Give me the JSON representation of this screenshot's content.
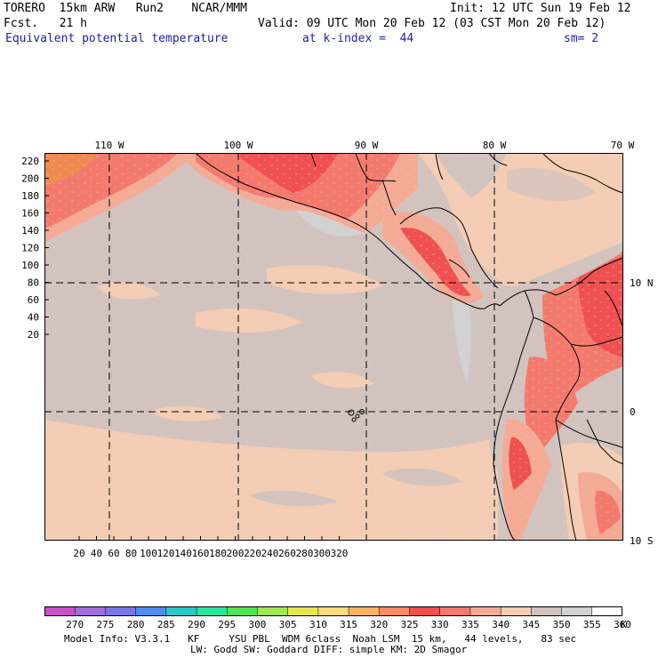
{
  "header": {
    "model_name": "TORERO  15km ARW   Run2    NCAR/MMM",
    "init": "Init: 12 UTC Sun 19 Feb 12",
    "fcst": "Fcst.   21 h",
    "valid": "Valid: 09 UTC Mon 20 Feb 12 (03 CST Mon 20 Feb 12)",
    "field": "Equivalent potential temperature",
    "level": "at k-index =  44",
    "smoothing": "sm= 2"
  },
  "map": {
    "top_longitudes": [
      "110 W",
      "100 W",
      "90 W",
      "80 W",
      "70 W"
    ],
    "right_latitudes": [
      "10 N",
      "0",
      "10 S"
    ],
    "y_ticks": [
      "220",
      "200",
      "180",
      "160",
      "140",
      "120",
      "100",
      "80",
      "60",
      "40",
      "20"
    ],
    "x_ticks": [
      "20",
      "40",
      "60",
      "80",
      "100",
      "120",
      "140",
      "160",
      "180",
      "200",
      "220",
      "240",
      "260",
      "280",
      "300",
      "320"
    ]
  },
  "colorbar": {
    "unit": "K",
    "labels": [
      "270",
      "275",
      "280",
      "285",
      "290",
      "295",
      "300",
      "305",
      "310",
      "315",
      "320",
      "325",
      "330",
      "335",
      "340",
      "345",
      "350",
      "355",
      "360"
    ],
    "colors": [
      "#c850c8",
      "#a070d8",
      "#7878e8",
      "#4f8cf0",
      "#28c8c8",
      "#28e6a0",
      "#50e650",
      "#a0e650",
      "#e6e650",
      "#fadc78",
      "#fab464",
      "#fa8c64",
      "#f05050",
      "#f57a6e",
      "#f5aa96",
      "#f5cdb4",
      "#d2c3be",
      "#d2d2d2",
      "#ffffff"
    ]
  },
  "footer": {
    "line1": "Model Info: V3.3.1   KF     YSU PBL  WDM 6class  Noah LSM  15 km,   44 levels,   83 sec",
    "line2": "LW: Godd SW: Goddard DIFF: simple KM: 2D Smagor"
  }
}
